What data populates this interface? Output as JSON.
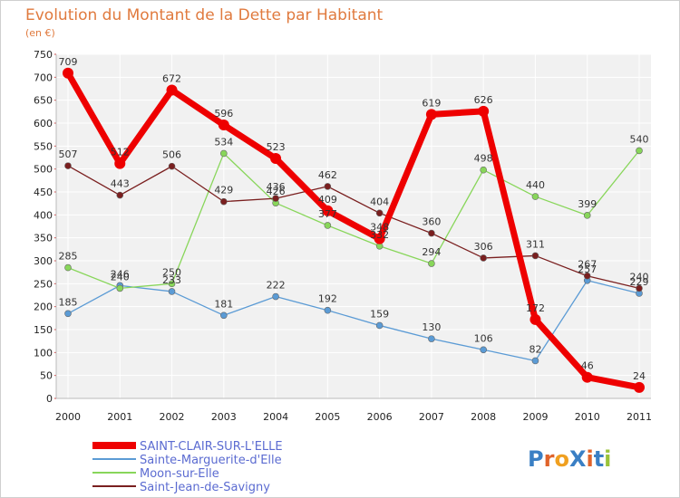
{
  "chart_data": {
    "type": "line",
    "title": "Evolution du Montant de la Dette par Habitant",
    "subtitle": "(en €)",
    "categories": [
      "2000",
      "2001",
      "2002",
      "2003",
      "2004",
      "2005",
      "2006",
      "2007",
      "2008",
      "2009",
      "2010",
      "2011"
    ],
    "ylim": [
      0,
      750
    ],
    "yticks": [
      0,
      50,
      100,
      150,
      200,
      250,
      300,
      350,
      400,
      450,
      500,
      550,
      600,
      650,
      700,
      750
    ],
    "grid": true,
    "legend_position": "bottom-left",
    "series": [
      {
        "name": "SAINT-CLAIR-SUR-L'ELLE",
        "color": "#ee0000",
        "values": [
          709,
          512,
          672,
          596,
          523,
          409,
          348,
          619,
          626,
          172,
          46,
          24
        ]
      },
      {
        "name": "Sainte-Marguerite-d'Elle",
        "color": "#5b9bd5",
        "values": [
          185,
          246,
          233,
          181,
          222,
          192,
          159,
          130,
          106,
          82,
          257,
          229
        ]
      },
      {
        "name": "Moon-sur-Elle",
        "color": "#88d65a",
        "values": [
          285,
          240,
          250,
          534,
          426,
          377,
          332,
          294,
          498,
          440,
          399,
          540
        ]
      },
      {
        "name": "Saint-Jean-de-Savigny",
        "color": "#7a1f1f",
        "values": [
          507,
          443,
          506,
          429,
          436,
          462,
          404,
          360,
          306,
          311,
          267,
          240
        ]
      }
    ]
  },
  "logo": {
    "text": "ProXiti"
  }
}
